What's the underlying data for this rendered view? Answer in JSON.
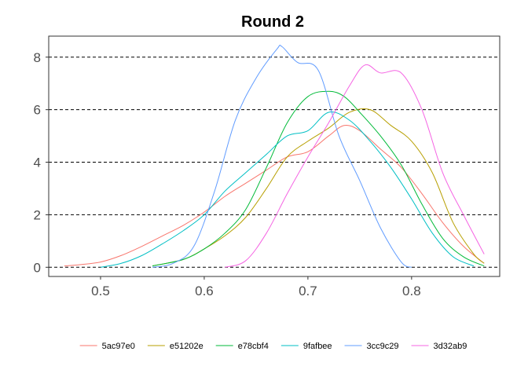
{
  "chart_data": {
    "type": "line",
    "title": "Round 2",
    "xlabel": "",
    "ylabel": "",
    "xlim": [
      0.45,
      0.885
    ],
    "ylim": [
      -0.35,
      8.8
    ],
    "x_ticks": [
      0.5,
      0.6,
      0.7,
      0.8
    ],
    "x_tick_labels": [
      "0.5",
      "0.6",
      "0.7",
      "0.8"
    ],
    "y_ticks": [
      0,
      2,
      4,
      6,
      8
    ],
    "y_tick_labels": [
      "0",
      "2",
      "4",
      "6",
      "8"
    ],
    "gridlines": "horizontal-dashed",
    "legend_position": "bottom",
    "series": [
      {
        "name": "5ac97e0",
        "color": "#F8766D",
        "x": [
          0.465,
          0.48,
          0.5,
          0.52,
          0.54,
          0.56,
          0.58,
          0.6,
          0.62,
          0.64,
          0.66,
          0.68,
          0.7,
          0.72,
          0.735,
          0.75,
          0.77,
          0.79,
          0.81,
          0.83,
          0.85,
          0.87
        ],
        "y": [
          0.05,
          0.1,
          0.2,
          0.45,
          0.8,
          1.2,
          1.6,
          2.1,
          2.7,
          3.2,
          3.7,
          4.2,
          4.4,
          5.0,
          5.4,
          5.2,
          4.5,
          3.8,
          2.8,
          1.7,
          0.8,
          0.15
        ]
      },
      {
        "name": "e51202e",
        "color": "#B79F00",
        "x": [
          0.55,
          0.58,
          0.6,
          0.62,
          0.64,
          0.66,
          0.68,
          0.7,
          0.72,
          0.74,
          0.76,
          0.78,
          0.8,
          0.82,
          0.84,
          0.86,
          0.87
        ],
        "y": [
          0.05,
          0.3,
          0.7,
          1.2,
          1.9,
          3.0,
          4.2,
          4.8,
          5.3,
          5.9,
          6.0,
          5.4,
          4.8,
          3.6,
          1.7,
          0.5,
          0.15
        ]
      },
      {
        "name": "e78cbf4",
        "color": "#00BA38",
        "x": [
          0.55,
          0.58,
          0.6,
          0.62,
          0.64,
          0.66,
          0.68,
          0.7,
          0.72,
          0.735,
          0.75,
          0.77,
          0.79,
          0.81,
          0.83,
          0.85,
          0.87
        ],
        "y": [
          0.05,
          0.3,
          0.7,
          1.3,
          2.2,
          3.8,
          5.5,
          6.5,
          6.7,
          6.5,
          5.9,
          5.0,
          3.9,
          2.4,
          1.1,
          0.4,
          0.05
        ]
      },
      {
        "name": "9fafbee",
        "color": "#00BFC4",
        "x": [
          0.5,
          0.52,
          0.54,
          0.56,
          0.58,
          0.6,
          0.62,
          0.64,
          0.66,
          0.68,
          0.7,
          0.72,
          0.74,
          0.76,
          0.78,
          0.8,
          0.82,
          0.84,
          0.86
        ],
        "y": [
          0.0,
          0.15,
          0.45,
          0.9,
          1.4,
          2.0,
          2.9,
          3.6,
          4.3,
          5.0,
          5.2,
          5.9,
          5.6,
          4.8,
          3.8,
          2.6,
          1.3,
          0.4,
          0.05
        ]
      },
      {
        "name": "3cc9c29",
        "color": "#619CFF",
        "x": [
          0.55,
          0.57,
          0.59,
          0.61,
          0.63,
          0.65,
          0.67,
          0.675,
          0.69,
          0.71,
          0.73,
          0.75,
          0.77,
          0.79,
          0.8
        ],
        "y": [
          0.0,
          0.15,
          0.8,
          2.9,
          5.6,
          7.2,
          8.3,
          8.4,
          7.8,
          7.5,
          5.0,
          3.3,
          1.5,
          0.2,
          0.0
        ]
      },
      {
        "name": "3d32ab9",
        "color": "#F564E3",
        "x": [
          0.62,
          0.64,
          0.66,
          0.68,
          0.7,
          0.72,
          0.74,
          0.755,
          0.77,
          0.79,
          0.81,
          0.83,
          0.85,
          0.87
        ],
        "y": [
          0.0,
          0.25,
          1.3,
          2.8,
          4.2,
          5.5,
          6.9,
          7.7,
          7.4,
          7.4,
          6.0,
          3.6,
          2.0,
          0.5
        ]
      }
    ]
  }
}
